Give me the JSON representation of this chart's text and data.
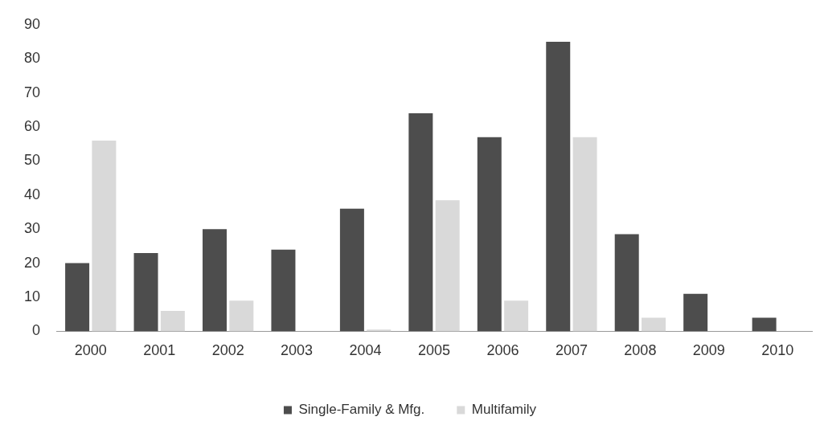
{
  "chart_data": {
    "type": "bar",
    "categories": [
      "2000",
      "2001",
      "2002",
      "2003",
      "2004",
      "2005",
      "2006",
      "2007",
      "2008",
      "2009",
      "2010"
    ],
    "series": [
      {
        "name": "Single-Family & Mfg.",
        "color": "#4d4d4d",
        "values": [
          20,
          23,
          30,
          24,
          36,
          64,
          57,
          85,
          28.5,
          11,
          4
        ]
      },
      {
        "name": "Multifamily",
        "color": "#d9d9d9",
        "values": [
          56,
          6,
          9,
          0,
          0.5,
          38.5,
          9,
          57,
          4,
          0,
          0
        ]
      }
    ],
    "ylim": [
      0,
      90
    ],
    "yticks": [
      0,
      10,
      20,
      30,
      40,
      50,
      60,
      70,
      80,
      90
    ],
    "grid": false,
    "legend": "bottom"
  }
}
